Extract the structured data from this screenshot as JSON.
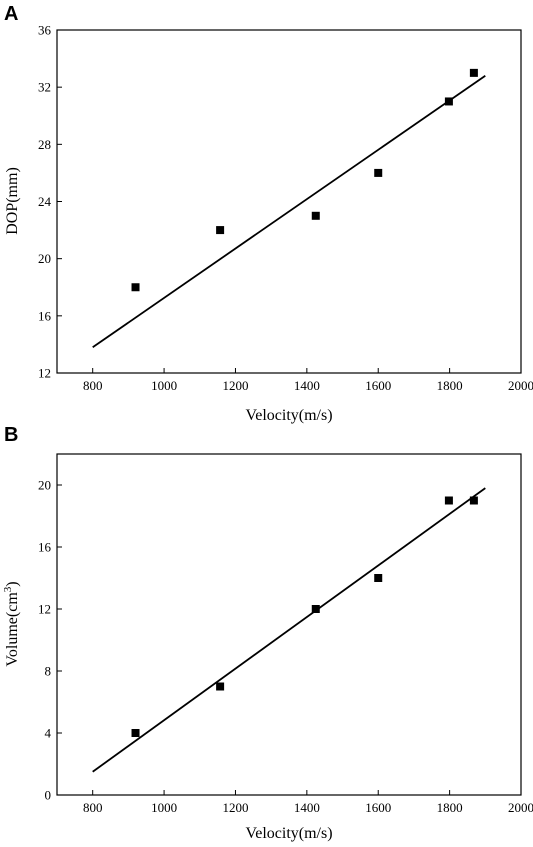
{
  "chart_data": [
    {
      "panel_label": "A",
      "type": "scatter",
      "xlabel": "Velocity(m/s)",
      "ylabel": "DOP(mm)",
      "xlim": [
        700,
        2000
      ],
      "ylim": [
        12,
        36
      ],
      "xticks": [
        800,
        1000,
        1200,
        1400,
        1600,
        1800,
        2000
      ],
      "yticks": [
        12,
        16,
        20,
        24,
        28,
        32,
        36
      ],
      "points": [
        {
          "x": 920,
          "y": 18
        },
        {
          "x": 1157,
          "y": 22
        },
        {
          "x": 1425,
          "y": 23
        },
        {
          "x": 1600,
          "y": 26
        },
        {
          "x": 1798,
          "y": 31
        },
        {
          "x": 1868,
          "y": 33
        }
      ],
      "fit_line": {
        "x": [
          800,
          1900
        ],
        "y": [
          13.8,
          32.8
        ]
      }
    },
    {
      "panel_label": "B",
      "type": "scatter",
      "xlabel": "Velocity(m/s)",
      "ylabel": "Volume(cm",
      "ylabel_sup": "3",
      "ylabel_close": ")",
      "xlim": [
        700,
        2000
      ],
      "ylim": [
        0,
        22
      ],
      "xticks": [
        800,
        1000,
        1200,
        1400,
        1600,
        1800,
        2000
      ],
      "yticks": [
        0,
        4,
        8,
        12,
        16,
        20
      ],
      "points": [
        {
          "x": 920,
          "y": 4
        },
        {
          "x": 1157,
          "y": 7
        },
        {
          "x": 1425,
          "y": 12
        },
        {
          "x": 1600,
          "y": 14
        },
        {
          "x": 1798,
          "y": 19
        },
        {
          "x": 1868,
          "y": 19
        }
      ],
      "fit_line": {
        "x": [
          800,
          1900
        ],
        "y": [
          1.5,
          19.8
        ]
      }
    }
  ]
}
